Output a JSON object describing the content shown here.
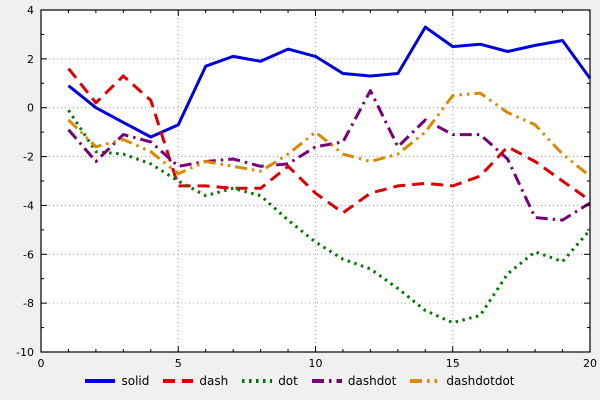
{
  "figure": {
    "background": "#f0f0f0",
    "plot_background": "#ffffff",
    "border_color": "#000000",
    "grid_color": "#9c9c9c",
    "tick_color": "#000000",
    "label_color": "#000000"
  },
  "chart_data": {
    "type": "line",
    "title": "",
    "xlabel": "",
    "ylabel": "",
    "xlim": [
      0,
      20
    ],
    "ylim": [
      -10,
      4
    ],
    "xticks": [
      0,
      5,
      10,
      15,
      20
    ],
    "yticks": [
      -10,
      -8,
      -6,
      -4,
      -2,
      0,
      2,
      4
    ],
    "x_minor_step": 1,
    "y_minor_step": 1,
    "grid": true,
    "legend_position": "bottom-center",
    "x": [
      1,
      2,
      3,
      4,
      5,
      6,
      7,
      8,
      9,
      10,
      11,
      12,
      13,
      14,
      15,
      16,
      17,
      18,
      19,
      20
    ],
    "series": [
      {
        "name": "solid",
        "color": "#0000dd",
        "dash": "solid",
        "values": [
          0.9,
          0.0,
          -0.6,
          -1.2,
          -0.7,
          1.7,
          2.1,
          1.9,
          2.4,
          2.1,
          1.4,
          1.3,
          1.4,
          3.3,
          2.5,
          2.6,
          2.3,
          2.55,
          2.75,
          1.2
        ]
      },
      {
        "name": "dash",
        "color": "#dd0000",
        "dash": "dash",
        "values": [
          1.6,
          0.2,
          1.3,
          0.3,
          -3.2,
          -3.2,
          -3.3,
          -3.3,
          -2.4,
          -3.5,
          -4.3,
          -3.5,
          -3.2,
          -3.1,
          -3.2,
          -2.8,
          -1.6,
          -2.2,
          -3.0,
          -3.8
        ]
      },
      {
        "name": "dot",
        "color": "#007700",
        "dash": "dot",
        "values": [
          -0.1,
          -1.8,
          -1.9,
          -2.3,
          -3.0,
          -3.6,
          -3.3,
          -3.6,
          -4.6,
          -5.5,
          -6.2,
          -6.6,
          -7.4,
          -8.3,
          -8.8,
          -8.5,
          -6.8,
          -5.9,
          -6.3,
          -5.0
        ]
      },
      {
        "name": "dashdot",
        "color": "#770077",
        "dash": "dashdot",
        "values": [
          -0.9,
          -2.2,
          -1.1,
          -1.4,
          -2.4,
          -2.2,
          -2.1,
          -2.4,
          -2.3,
          -1.6,
          -1.4,
          0.7,
          -1.6,
          -0.5,
          -1.1,
          -1.1,
          -2.1,
          -4.5,
          -4.6,
          -3.9
        ]
      },
      {
        "name": "dashdotdot",
        "color": "#dd8800",
        "dash": "dashdotdot",
        "values": [
          -0.5,
          -1.6,
          -1.3,
          -1.8,
          -2.7,
          -2.2,
          -2.4,
          -2.6,
          -1.9,
          -1.0,
          -1.9,
          -2.2,
          -1.9,
          -1.0,
          0.5,
          0.6,
          -0.2,
          -0.7,
          -1.9,
          -2.8
        ]
      }
    ]
  }
}
